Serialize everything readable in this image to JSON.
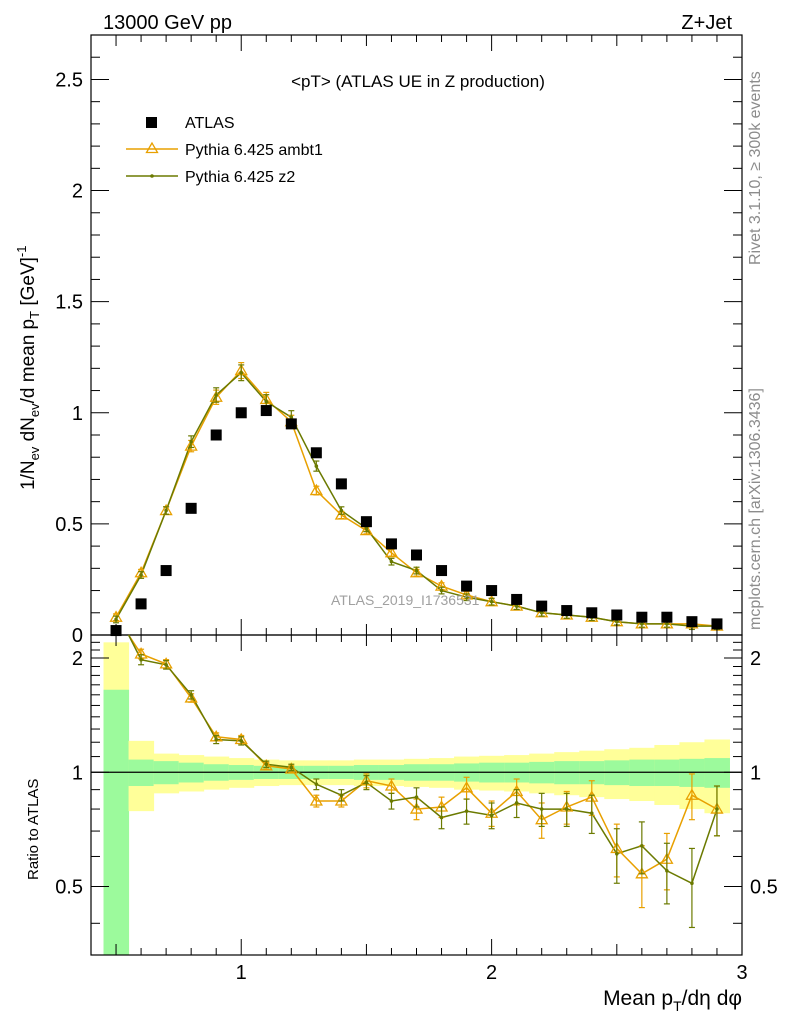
{
  "header": {
    "left": "13000 GeV pp",
    "right": "Z+Jet"
  },
  "plot_title": "<pT> (ATLAS UE in Z production)",
  "watermark": "ATLAS_2019_I1736531",
  "side_labels": {
    "rivet": "Rivet 3.1.10, ≥ 300k events",
    "mcplots": "mcplots.cern.ch [arXiv:1306.3436]"
  },
  "colors": {
    "data": "#000000",
    "ambt1": "#e8a000",
    "z2": "#6b7a00",
    "band_inner": "#9cfa9c",
    "band_outer": "#ffff99"
  },
  "chart_data": [
    {
      "type": "scatter",
      "title": "<pT> (ATLAS UE in Z production)",
      "xlabel": "Mean p_T/dη dφ",
      "ylabel": "1/N_ev dN_ev/d mean p_T [GeV]^-1",
      "xlim": [
        0.4,
        3.0
      ],
      "ylim": [
        0,
        2.7
      ],
      "yticks": [
        0,
        0.5,
        1,
        1.5,
        2,
        2.5
      ],
      "ytick_labels": [
        "0",
        "0.5",
        "1",
        "1.5",
        "2",
        "2.5"
      ],
      "legend_placement": "top-left",
      "series": [
        {
          "name": "ATLAS",
          "style": "square",
          "x": [
            0.5,
            0.6,
            0.7,
            0.8,
            0.9,
            1.0,
            1.1,
            1.2,
            1.3,
            1.4,
            1.5,
            1.6,
            1.7,
            1.8,
            1.9,
            2.0,
            2.1,
            2.2,
            2.3,
            2.4,
            2.5,
            2.6,
            2.7,
            2.8,
            2.9
          ],
          "y": [
            0.02,
            0.14,
            0.29,
            0.57,
            0.9,
            1.0,
            1.01,
            0.95,
            0.82,
            0.68,
            0.51,
            0.41,
            0.36,
            0.29,
            0.22,
            0.2,
            0.16,
            0.13,
            0.11,
            0.1,
            0.09,
            0.08,
            0.08,
            0.06,
            0.05
          ]
        },
        {
          "name": "Pythia 6.425 ambt1",
          "style": "triangle",
          "x": [
            0.5,
            0.6,
            0.7,
            0.8,
            0.9,
            1.0,
            1.1,
            1.2,
            1.3,
            1.4,
            1.5,
            1.6,
            1.7,
            1.8,
            1.9,
            2.0,
            2.1,
            2.2,
            2.3,
            2.4,
            2.5,
            2.6,
            2.7,
            2.8,
            2.9
          ],
          "y": [
            0.08,
            0.28,
            0.56,
            0.85,
            1.07,
            1.19,
            1.06,
            0.96,
            0.65,
            0.54,
            0.47,
            0.37,
            0.28,
            0.22,
            0.18,
            0.15,
            0.13,
            0.1,
            0.09,
            0.08,
            0.06,
            0.05,
            0.05,
            0.05,
            0.04
          ]
        },
        {
          "name": "Pythia 6.425 z2",
          "style": "dot",
          "x": [
            0.5,
            0.6,
            0.7,
            0.8,
            0.9,
            1.0,
            1.1,
            1.2,
            1.3,
            1.4,
            1.5,
            1.6,
            1.7,
            1.8,
            1.9,
            2.0,
            2.1,
            2.2,
            2.3,
            2.4,
            2.5,
            2.6,
            2.7,
            2.8,
            2.9
          ],
          "y": [
            0.07,
            0.27,
            0.56,
            0.87,
            1.08,
            1.18,
            1.05,
            0.98,
            0.76,
            0.56,
            0.48,
            0.33,
            0.29,
            0.2,
            0.17,
            0.15,
            0.13,
            0.1,
            0.09,
            0.08,
            0.06,
            0.05,
            0.05,
            0.04,
            0.04
          ]
        }
      ]
    },
    {
      "type": "scatter",
      "title": "",
      "xlabel": "Mean p_T/dη dφ",
      "ylabel": "Ratio to ATLAS",
      "xlim": [
        0.4,
        3.0
      ],
      "ylim": [
        0.33,
        2.3
      ],
      "xticks": [
        1,
        2,
        3
      ],
      "xtick_labels": [
        "1",
        "2",
        "3"
      ],
      "yticks": [
        0.5,
        1,
        2
      ],
      "ytick_labels": [
        "0.5",
        "1",
        "2"
      ],
      "bands": {
        "x_edges": [
          0.45,
          0.55,
          0.65,
          0.75,
          0.85,
          0.95,
          1.05,
          1.15,
          1.25,
          1.35,
          1.45,
          1.55,
          1.65,
          1.75,
          1.85,
          1.95,
          2.05,
          2.15,
          2.25,
          2.35,
          2.45,
          2.55,
          2.65,
          2.75,
          2.85,
          2.95
        ],
        "inner_lo": [
          0.3,
          0.92,
          0.93,
          0.94,
          0.95,
          0.955,
          0.96,
          0.96,
          0.96,
          0.96,
          0.955,
          0.955,
          0.95,
          0.95,
          0.945,
          0.94,
          0.94,
          0.935,
          0.93,
          0.93,
          0.925,
          0.92,
          0.92,
          0.915,
          0.91
        ],
        "inner_hi": [
          1.65,
          1.08,
          1.07,
          1.06,
          1.05,
          1.045,
          1.04,
          1.04,
          1.04,
          1.04,
          1.045,
          1.045,
          1.05,
          1.05,
          1.055,
          1.06,
          1.06,
          1.065,
          1.07,
          1.07,
          1.075,
          1.08,
          1.08,
          1.085,
          1.09
        ],
        "outer_lo": [
          0.3,
          0.79,
          0.88,
          0.89,
          0.9,
          0.91,
          0.92,
          0.925,
          0.925,
          0.925,
          0.92,
          0.92,
          0.915,
          0.91,
          0.9,
          0.895,
          0.89,
          0.88,
          0.87,
          0.86,
          0.85,
          0.84,
          0.82,
          0.8,
          0.78
        ],
        "outer_hi": [
          2.2,
          1.21,
          1.12,
          1.11,
          1.1,
          1.09,
          1.08,
          1.075,
          1.075,
          1.075,
          1.08,
          1.08,
          1.085,
          1.09,
          1.1,
          1.105,
          1.11,
          1.12,
          1.13,
          1.14,
          1.15,
          1.16,
          1.18,
          1.2,
          1.22
        ]
      },
      "series": [
        {
          "name": "Pythia 6.425 ambt1",
          "style": "triangle",
          "x": [
            0.6,
            0.7,
            0.8,
            0.9,
            1.0,
            1.1,
            1.2,
            1.3,
            1.4,
            1.5,
            1.6,
            1.7,
            1.8,
            1.9,
            2.0,
            2.1,
            2.2,
            2.3,
            2.4,
            2.5,
            2.6,
            2.7,
            2.8,
            2.9
          ],
          "y": [
            2.05,
            1.93,
            1.57,
            1.24,
            1.22,
            1.04,
            1.02,
            0.84,
            0.84,
            0.95,
            0.92,
            0.8,
            0.81,
            0.91,
            0.78,
            0.89,
            0.75,
            0.81,
            0.86,
            0.63,
            0.54,
            0.59,
            0.87,
            0.8
          ],
          "err": [
            0.06,
            0.05,
            0.04,
            0.03,
            0.03,
            0.02,
            0.02,
            0.03,
            0.03,
            0.04,
            0.04,
            0.05,
            0.05,
            0.06,
            0.06,
            0.07,
            0.08,
            0.08,
            0.09,
            0.1,
            0.1,
            0.1,
            0.12,
            0.12
          ]
        },
        {
          "name": "Pythia 6.425 z2",
          "style": "dot",
          "x": [
            0.6,
            0.7,
            0.8,
            0.9,
            1.0,
            1.1,
            1.2,
            1.3,
            1.4,
            1.5,
            1.6,
            1.7,
            1.8,
            1.9,
            2.0,
            2.1,
            2.2,
            2.3,
            2.4,
            2.5,
            2.6,
            2.7,
            2.8,
            2.9
          ],
          "y": [
            1.98,
            1.92,
            1.6,
            1.22,
            1.21,
            1.05,
            1.03,
            0.93,
            0.87,
            0.94,
            0.84,
            0.86,
            0.76,
            0.79,
            0.77,
            0.83,
            0.8,
            0.8,
            0.78,
            0.61,
            0.64,
            0.55,
            0.51,
            0.8
          ],
          "err": [
            0.06,
            0.05,
            0.04,
            0.03,
            0.03,
            0.02,
            0.02,
            0.03,
            0.03,
            0.04,
            0.04,
            0.05,
            0.05,
            0.06,
            0.06,
            0.07,
            0.08,
            0.08,
            0.09,
            0.1,
            0.1,
            0.1,
            0.12,
            0.12
          ]
        }
      ]
    }
  ]
}
